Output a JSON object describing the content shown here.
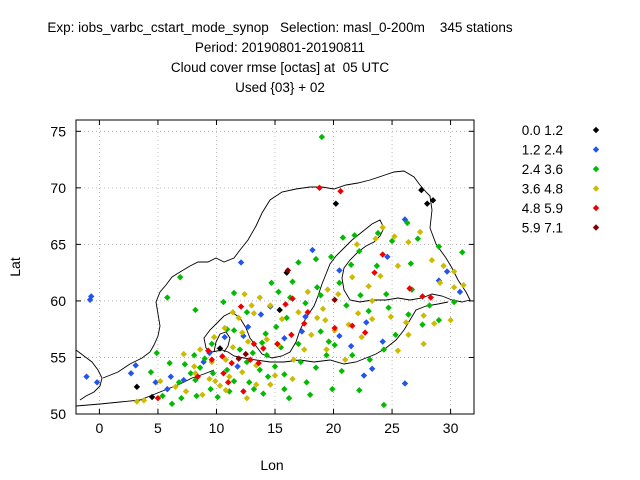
{
  "header": {
    "line1": "Exp: iobs_varbc_cstart_mode_synop   Selection: masl_0-200m    345 stations",
    "line2": "Period: 20190801-20190811",
    "line3": "Cloud cover rmse [octas] at  05 UTC",
    "line4": "Used {03} + 02"
  },
  "chart_data": {
    "type": "scatter",
    "title": "Cloud cover rmse [octas] at  05 UTC",
    "xlabel": "Lon",
    "ylabel": "Lat",
    "xlim": [
      -2,
      32
    ],
    "ylim": [
      50,
      76
    ],
    "xticks": [
      0,
      5,
      10,
      15,
      20,
      25,
      30
    ],
    "yticks": [
      50,
      55,
      60,
      65,
      70,
      75
    ],
    "grid": true,
    "legend_position": "right",
    "series": [
      {
        "name": "0.0 1.2",
        "color": "#000000",
        "points": [
          [
            3.2,
            52.4
          ],
          [
            4.5,
            51.5
          ],
          [
            15.4,
            59.2
          ],
          [
            16.0,
            62.5
          ],
          [
            20.2,
            68.6
          ],
          [
            27.5,
            69.8
          ],
          [
            28.5,
            68.9
          ],
          [
            28.0,
            68.6
          ],
          [
            10.3,
            55.8
          ]
        ]
      },
      {
        "name": "1.2 2.4",
        "color": "#2255ee",
        "points": [
          [
            -0.7,
            60.4
          ],
          [
            -0.8,
            60.1
          ],
          [
            -1.1,
            53.3
          ],
          [
            -0.2,
            52.8
          ],
          [
            2.7,
            53.6
          ],
          [
            3.1,
            54.3
          ],
          [
            6.1,
            53.3
          ],
          [
            7.2,
            53.0
          ],
          [
            8.9,
            54.6
          ],
          [
            9.4,
            55.4
          ],
          [
            11.8,
            54.2
          ],
          [
            12.3,
            56.9
          ],
          [
            12.7,
            57.7
          ],
          [
            13.8,
            58.8
          ],
          [
            12.1,
            63.4
          ],
          [
            14.6,
            59.5
          ],
          [
            15.8,
            56.7
          ],
          [
            17.3,
            57.3
          ],
          [
            17.6,
            58.6
          ],
          [
            20.5,
            56.9
          ],
          [
            21.5,
            56.0
          ],
          [
            22.6,
            53.4
          ],
          [
            23.3,
            54.0
          ],
          [
            26.1,
            52.7
          ],
          [
            24.2,
            56.4
          ],
          [
            22.8,
            58.1
          ],
          [
            20.5,
            62.7
          ],
          [
            26.1,
            67.2
          ],
          [
            24.6,
            63.9
          ],
          [
            29.7,
            62.6
          ],
          [
            30.8,
            60.8
          ],
          [
            29.0,
            61.8
          ],
          [
            18.2,
            64.5
          ],
          [
            10.7,
            56.8
          ],
          [
            4.8,
            52.8
          ],
          [
            5.8,
            52.2
          ]
        ]
      },
      {
        "name": "2.4 3.6",
        "color": "#00bb00",
        "points": [
          [
            19.0,
            74.5
          ],
          [
            20.8,
            65.6
          ],
          [
            21.8,
            65.8
          ],
          [
            25.0,
            65.3
          ],
          [
            26.3,
            66.9
          ],
          [
            27.2,
            65.5
          ],
          [
            29.0,
            64.8
          ],
          [
            31.0,
            64.3
          ],
          [
            17.0,
            63.4
          ],
          [
            18.5,
            63.7
          ],
          [
            19.8,
            63.9
          ],
          [
            21.5,
            63.2
          ],
          [
            23.7,
            63.1
          ],
          [
            15.3,
            60.8
          ],
          [
            14.7,
            61.6
          ],
          [
            16.5,
            61.7
          ],
          [
            18.6,
            61.2
          ],
          [
            20.5,
            61.6
          ],
          [
            22.3,
            60.5
          ],
          [
            24.5,
            60.6
          ],
          [
            26.7,
            61.0
          ],
          [
            28.2,
            59.6
          ],
          [
            12.6,
            59.0
          ],
          [
            11.5,
            57.4
          ],
          [
            13.1,
            55.4
          ],
          [
            14.2,
            57.1
          ],
          [
            15.5,
            55.9
          ],
          [
            17.0,
            56.2
          ],
          [
            18.9,
            57.3
          ],
          [
            19.4,
            55.2
          ],
          [
            20.7,
            53.8
          ],
          [
            19.9,
            52.2
          ],
          [
            17.7,
            52.8
          ],
          [
            15.8,
            52.2
          ],
          [
            14.0,
            51.8
          ],
          [
            12.8,
            52.8
          ],
          [
            11.1,
            52.0
          ],
          [
            9.5,
            52.2
          ],
          [
            8.3,
            51.6
          ],
          [
            7.0,
            51.4
          ],
          [
            6.2,
            50.9
          ],
          [
            5.4,
            51.6
          ],
          [
            6.8,
            52.8
          ],
          [
            7.8,
            53.6
          ],
          [
            8.6,
            54.1
          ],
          [
            9.7,
            53.6
          ],
          [
            10.9,
            53.9
          ],
          [
            12.6,
            54.6
          ],
          [
            13.7,
            53.9
          ],
          [
            14.4,
            53.3
          ],
          [
            15.8,
            53.5
          ],
          [
            17.2,
            54.6
          ],
          [
            18.5,
            54.1
          ],
          [
            4.4,
            53.7
          ],
          [
            4.9,
            55.4
          ],
          [
            6.0,
            54.5
          ],
          [
            8.1,
            55.2
          ],
          [
            9.6,
            56.2
          ],
          [
            10.9,
            57.5
          ],
          [
            12.0,
            55.7
          ],
          [
            13.9,
            56.3
          ],
          [
            15.1,
            57.7
          ],
          [
            16.0,
            58.5
          ],
          [
            17.6,
            59.8
          ],
          [
            18.9,
            60.5
          ],
          [
            21.1,
            59.6
          ],
          [
            23.0,
            59.1
          ],
          [
            24.7,
            59.4
          ],
          [
            26.4,
            58.8
          ],
          [
            27.6,
            57.9
          ],
          [
            25.3,
            57.0
          ],
          [
            24.3,
            55.7
          ],
          [
            23.1,
            54.8
          ],
          [
            21.6,
            55.2
          ],
          [
            20.1,
            56.1
          ],
          [
            6.9,
            62.1
          ],
          [
            5.8,
            60.3
          ],
          [
            8.2,
            59.2
          ],
          [
            10.6,
            59.9
          ],
          [
            11.5,
            60.7
          ],
          [
            19.6,
            56.4
          ],
          [
            16.3,
            60.3
          ],
          [
            22.2,
            64.4
          ],
          [
            23.8,
            66.0
          ],
          [
            14.3,
            55.2
          ],
          [
            15.0,
            54.2
          ],
          [
            13.2,
            52.2
          ],
          [
            16.2,
            51.4
          ],
          [
            18.0,
            51.7
          ],
          [
            22.2,
            52.1
          ],
          [
            24.3,
            50.8
          ],
          [
            11.5,
            52.9
          ],
          [
            10.1,
            51.5
          ],
          [
            8.2,
            53.0
          ],
          [
            9.0,
            54.9
          ],
          [
            7.3,
            54.4
          ],
          [
            30.3,
            59.9
          ],
          [
            29.0,
            58.3
          ],
          [
            26.6,
            63.3
          ]
        ]
      },
      {
        "name": "3.6 4.8",
        "color": "#ccbb00",
        "points": [
          [
            22.0,
            65.0
          ],
          [
            23.6,
            65.5
          ],
          [
            24.2,
            66.5
          ],
          [
            25.2,
            65.7
          ],
          [
            26.4,
            65.2
          ],
          [
            27.4,
            66.1
          ],
          [
            28.4,
            63.6
          ],
          [
            29.4,
            63.1
          ],
          [
            30.3,
            62.6
          ],
          [
            31.1,
            61.4
          ],
          [
            30.3,
            61.2
          ],
          [
            25.5,
            63.1
          ],
          [
            24.0,
            62.2
          ],
          [
            23.0,
            61.3
          ],
          [
            21.6,
            62.1
          ],
          [
            20.4,
            60.6
          ],
          [
            22.1,
            58.9
          ],
          [
            23.3,
            58.4
          ],
          [
            24.9,
            58.6
          ],
          [
            26.2,
            58.1
          ],
          [
            27.7,
            58.7
          ],
          [
            28.6,
            58.0
          ],
          [
            30.0,
            58.3
          ],
          [
            29.1,
            61.6
          ],
          [
            19.1,
            59.3
          ],
          [
            18.6,
            58.5
          ],
          [
            17.0,
            59.0
          ],
          [
            15.6,
            58.4
          ],
          [
            14.6,
            59.6
          ],
          [
            13.2,
            58.9
          ],
          [
            13.7,
            60.3
          ],
          [
            12.4,
            60.6
          ],
          [
            11.4,
            59.0
          ],
          [
            10.7,
            57.6
          ],
          [
            9.8,
            56.8
          ],
          [
            8.6,
            55.7
          ],
          [
            8.1,
            54.2
          ],
          [
            9.4,
            53.1
          ],
          [
            10.3,
            52.5
          ],
          [
            11.1,
            53.3
          ],
          [
            12.2,
            53.7
          ],
          [
            13.4,
            54.3
          ],
          [
            14.6,
            52.6
          ],
          [
            16.5,
            53.1
          ],
          [
            17.5,
            55.7
          ],
          [
            18.1,
            57.0
          ],
          [
            19.3,
            58.3
          ],
          [
            3.8,
            51.2
          ],
          [
            3.2,
            51.1
          ],
          [
            5.2,
            52.9
          ],
          [
            6.5,
            52.4
          ],
          [
            7.4,
            52.0
          ],
          [
            8.8,
            51.7
          ],
          [
            9.9,
            52.9
          ],
          [
            10.8,
            52.1
          ],
          [
            12.6,
            51.4
          ],
          [
            13.4,
            52.6
          ],
          [
            15.0,
            53.4
          ],
          [
            16.6,
            54.8
          ],
          [
            15.3,
            56.1
          ],
          [
            14.3,
            56.6
          ],
          [
            12.2,
            57.2
          ],
          [
            11.9,
            58.5
          ],
          [
            13.0,
            59.6
          ],
          [
            22.4,
            56.8
          ],
          [
            25.5,
            55.6
          ],
          [
            26.4,
            57.0
          ],
          [
            27.7,
            56.2
          ],
          [
            23.3,
            60.0
          ],
          [
            21.3,
            57.9
          ],
          [
            20.1,
            57.4
          ],
          [
            19.5,
            61.0
          ],
          [
            17.8,
            60.8
          ],
          [
            19.4,
            55.7
          ],
          [
            21.0,
            54.8
          ],
          [
            8.2,
            53.6
          ],
          [
            9.6,
            54.6
          ],
          [
            10.8,
            54.8
          ],
          [
            11.4,
            55.9
          ],
          [
            12.7,
            56.4
          ],
          [
            7.2,
            55.3
          ]
        ]
      },
      {
        "name": "4.8 5.9",
        "color": "#ee0000",
        "points": [
          [
            18.8,
            70.0
          ],
          [
            20.6,
            69.7
          ],
          [
            24.2,
            64.1
          ],
          [
            26.5,
            61.1
          ],
          [
            27.6,
            60.4
          ],
          [
            28.3,
            60.3
          ],
          [
            23.5,
            62.5
          ],
          [
            17.5,
            58.0
          ],
          [
            16.4,
            57.0
          ],
          [
            15.2,
            56.2
          ],
          [
            13.2,
            56.2
          ],
          [
            12.1,
            59.5
          ],
          [
            10.5,
            55.1
          ],
          [
            9.6,
            54.8
          ],
          [
            11.3,
            54.5
          ],
          [
            10.6,
            53.6
          ],
          [
            11.0,
            52.8
          ],
          [
            12.3,
            52.0
          ],
          [
            5.0,
            51.4
          ],
          [
            8.4,
            53.3
          ],
          [
            20.1,
            57.6
          ],
          [
            21.6,
            57.8
          ],
          [
            22.7,
            57.2
          ],
          [
            15.9,
            59.7
          ],
          [
            16.5,
            60.2
          ],
          [
            17.8,
            59.0
          ],
          [
            12.9,
            54.8
          ],
          [
            14.0,
            55.8
          ],
          [
            9.3,
            55.6
          ],
          [
            13.6,
            54.5
          ]
        ]
      },
      {
        "name": "5.9 7.1",
        "color": "#880000",
        "points": [
          [
            20.1,
            60.1
          ],
          [
            11.9,
            54.9
          ],
          [
            12.5,
            55.3
          ],
          [
            16.1,
            62.7
          ]
        ]
      }
    ]
  }
}
